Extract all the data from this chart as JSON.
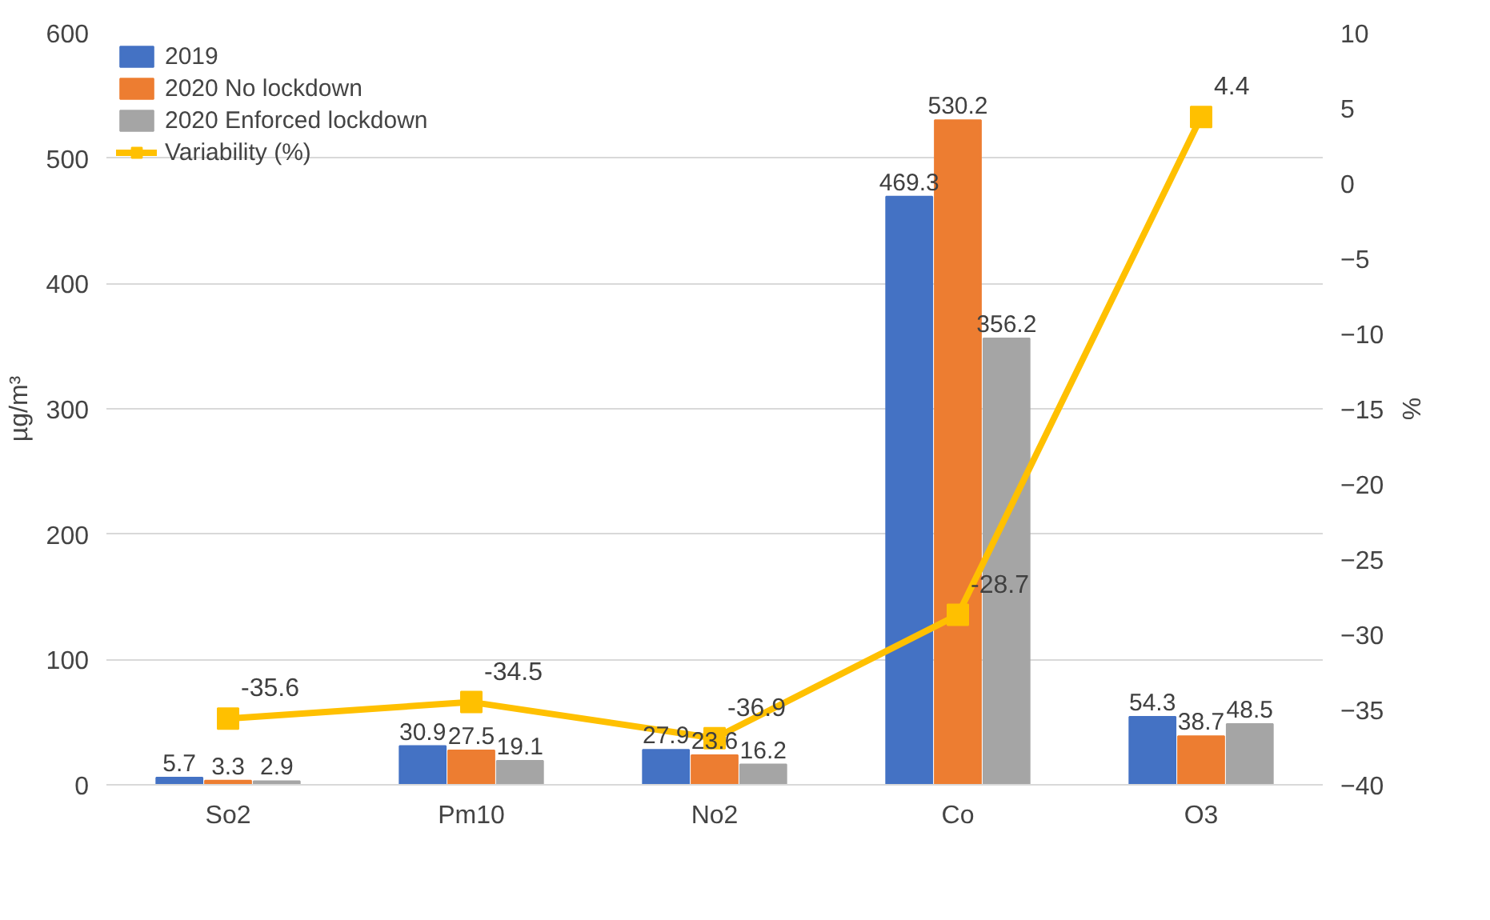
{
  "chart_data": {
    "type": "bar",
    "categories": [
      "So2",
      "Pm10",
      "No2",
      "Co",
      "O3"
    ],
    "ylabel": "µg/m³",
    "y2label": "%",
    "ylim": [
      0,
      600
    ],
    "yticks": [
      0,
      100,
      200,
      300,
      400,
      500,
      600
    ],
    "y2lim": [
      -40,
      10
    ],
    "y2ticks": [
      -40,
      -35,
      -30,
      -25,
      -20,
      -15,
      -10,
      -5,
      0,
      5,
      10
    ],
    "grid": "y",
    "legend": "top left",
    "data_labels": true,
    "marker": "square",
    "line_style": "solid",
    "series": [
      {
        "name": "2019",
        "color": "#4472c4",
        "values": [
          5.7,
          30.9,
          27.9,
          469.3,
          54.3
        ]
      },
      {
        "name": "2020 No lockdown",
        "color": "#ed7d31",
        "values": [
          3.3,
          27.5,
          23.6,
          530.2,
          38.7
        ]
      },
      {
        "name": "2020 Enforced lockdown",
        "color": "#a5a5a5",
        "values": [
          2.9,
          19.1,
          16.2,
          356.2,
          48.5
        ]
      },
      {
        "name": "Variability (%)",
        "color": "#ffc000",
        "type": "line",
        "axis": "y2",
        "values": [
          -35.6,
          -34.5,
          -36.9,
          -28.7,
          4.4
        ]
      }
    ]
  }
}
